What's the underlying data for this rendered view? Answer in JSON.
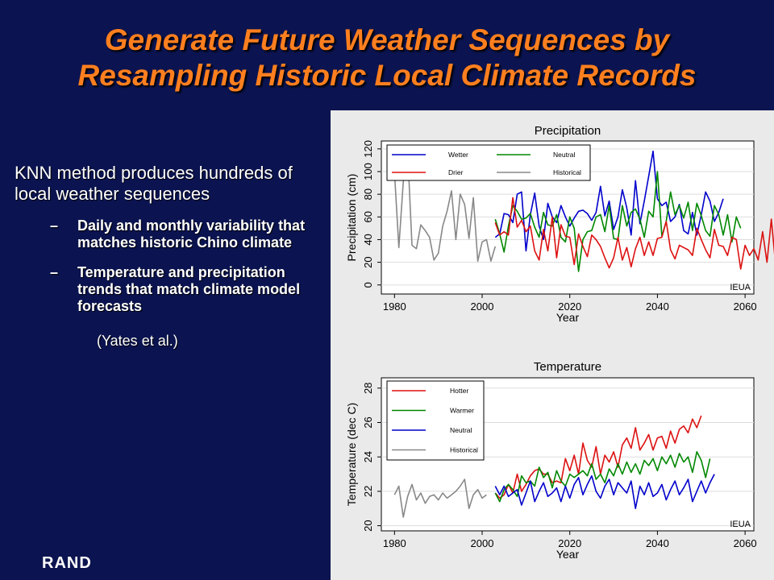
{
  "slide": {
    "title_line1": "Generate Future Weather Sequences by",
    "title_line2": "Resampling Historic Local Climate Records",
    "bullet_main": "KNN method produces hundreds of local weather sequences",
    "sub_bullets": [
      "Daily and monthly variability that matches historic Chino climate",
      "Temperature and precipitation trends that match climate model forecasts"
    ],
    "dash": "–",
    "citation": "(Yates et al.)",
    "logo": "RAND"
  },
  "chart_data": [
    {
      "type": "line",
      "title": "Precipitation",
      "xlabel": "Year",
      "ylabel": "Precipitation (cm)",
      "xlim": [
        1977,
        2062
      ],
      "ylim": [
        -8,
        127
      ],
      "xticks": [
        1980,
        2000,
        2020,
        2040,
        2060
      ],
      "yticks": [
        0,
        20,
        40,
        60,
        80,
        100,
        120
      ],
      "grid": true,
      "legend_position": "top-left",
      "annotation": "IEUA",
      "series": [
        {
          "name": "Wetter",
          "color": "#0000cc",
          "x_start": 2003,
          "values": [
            42,
            45,
            63,
            62,
            55,
            80,
            82,
            30,
            62,
            81,
            52,
            40,
            72,
            60,
            55,
            70,
            60,
            52,
            59,
            65,
            66,
            63,
            57,
            64,
            87,
            61,
            74,
            49,
            60,
            84,
            68,
            44,
            92,
            54,
            74,
            96,
            118,
            76,
            70,
            73,
            56,
            60,
            71,
            48,
            45,
            64,
            44,
            62,
            82,
            74,
            56,
            64,
            76
          ]
        },
        {
          "name": "Neutral",
          "color": "#008800",
          "x_start": 2003,
          "values": [
            58,
            45,
            29,
            52,
            70,
            65,
            58,
            59,
            63,
            51,
            42,
            64,
            53,
            52,
            62,
            42,
            38,
            60,
            50,
            12,
            40,
            47,
            48,
            60,
            62,
            47,
            70,
            41,
            40,
            70,
            52,
            64,
            67,
            58,
            42,
            65,
            60,
            100,
            43,
            56,
            82,
            62,
            70,
            59,
            73,
            48,
            72,
            61,
            48,
            43,
            70,
            62,
            44,
            62,
            38,
            60,
            50
          ]
        },
        {
          "name": "Drier",
          "color": "#dd1111",
          "x_start": 2003,
          "values": [
            55,
            44,
            47,
            44,
            77,
            51,
            57,
            47,
            52,
            30,
            22,
            49,
            30,
            60,
            24,
            53,
            43,
            42,
            18,
            45,
            34,
            25,
            44,
            40,
            34,
            24,
            15,
            24,
            42,
            22,
            33,
            16,
            32,
            42,
            26,
            38,
            26,
            41,
            42,
            56,
            31,
            23,
            35,
            33,
            31,
            26,
            50,
            40,
            31,
            24,
            49,
            35,
            34,
            26,
            42,
            40,
            14,
            35,
            26,
            32,
            22,
            47,
            20,
            58,
            16,
            10,
            59
          ]
        },
        {
          "name": "Historical",
          "color": "#888888",
          "x_start": 1980,
          "values": [
            99,
            33,
            91,
            118,
            35,
            32,
            53,
            48,
            42,
            22,
            28,
            52,
            65,
            83,
            40,
            80,
            71,
            41,
            77,
            21,
            38,
            40,
            21,
            34
          ]
        }
      ]
    },
    {
      "type": "line",
      "title": "Temperature",
      "xlabel": "Year",
      "ylabel": "Temperature (dec C)",
      "xlim": [
        1977,
        2062
      ],
      "ylim": [
        19.7,
        28.6
      ],
      "xticks": [
        1980,
        2000,
        2020,
        2040,
        2060
      ],
      "yticks": [
        20,
        22,
        24,
        26,
        28
      ],
      "grid": true,
      "legend_position": "top-left",
      "annotation": "IEUA",
      "series": [
        {
          "name": "Hotter",
          "color": "#dd1111",
          "x_start": 2003,
          "values": [
            21.9,
            21.6,
            21.8,
            22.4,
            21.9,
            23.0,
            22.0,
            22.4,
            22.9,
            23.2,
            23.3,
            23.0,
            23.0,
            22.5,
            22.6,
            22.5,
            23.9,
            23.2,
            24.1,
            23.0,
            24.8,
            23.8,
            23.4,
            24.6,
            23.0,
            24.1,
            23.7,
            24.3,
            23.4,
            24.7,
            25.1,
            24.5,
            25.7,
            24.4,
            24.8,
            25.3,
            24.4,
            25.1,
            25.2,
            24.5,
            25.5,
            24.8,
            25.6,
            25.8,
            25.4,
            26.2,
            25.7,
            26.4
          ]
        },
        {
          "name": "Warmer",
          "color": "#008800",
          "x_start": 2003,
          "values": [
            21.9,
            21.4,
            22.1,
            22.4,
            22.1,
            21.7,
            22.9,
            22.5,
            22.6,
            22.3,
            23.4,
            22.8,
            23.1,
            22.2,
            23.2,
            22.6,
            22.3,
            23.0,
            22.8,
            23.0,
            23.2,
            22.9,
            23.6,
            22.7,
            23.0,
            22.5,
            23.3,
            22.9,
            23.6,
            23.0,
            23.7,
            23.1,
            23.6,
            23.0,
            23.8,
            23.5,
            23.9,
            23.2,
            24.0,
            23.6,
            24.1,
            23.4,
            24.2,
            23.7,
            24.0,
            23.1,
            24.3,
            23.8,
            22.8,
            23.9
          ]
        },
        {
          "name": "Neutral",
          "color": "#0000cc",
          "x_start": 2003,
          "values": [
            22.3,
            21.8,
            22.3,
            21.7,
            21.9,
            22.1,
            21.2,
            21.9,
            22.6,
            21.4,
            22.0,
            22.5,
            21.7,
            21.9,
            22.2,
            21.4,
            22.3,
            21.6,
            22.4,
            22.8,
            21.8,
            22.4,
            22.9,
            22.0,
            21.6,
            22.3,
            22.7,
            21.8,
            22.5,
            22.2,
            21.9,
            22.6,
            21.0,
            22.3,
            21.8,
            22.5,
            21.7,
            21.9,
            22.4,
            21.5,
            22.1,
            22.6,
            21.8,
            22.2,
            22.7,
            21.4,
            22.0,
            22.6,
            21.9,
            22.5,
            23.0
          ]
        },
        {
          "name": "Historical",
          "color": "#888888",
          "x_start": 1980,
          "values": [
            21.8,
            22.3,
            20.5,
            21.7,
            22.4,
            21.5,
            21.9,
            21.3,
            21.7,
            21.8,
            21.5,
            21.9,
            21.6,
            21.8,
            22.0,
            22.3,
            22.7,
            21.0,
            21.8,
            22.1,
            21.6,
            21.8
          ]
        }
      ]
    }
  ]
}
